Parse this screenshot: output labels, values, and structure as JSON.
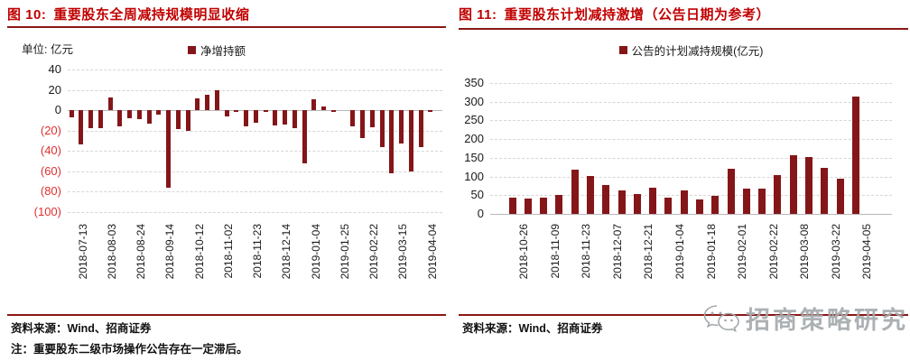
{
  "colors": {
    "bar": "#841619",
    "title_red": "#c00000",
    "rule_red": "#8b1717",
    "negative_tick_red": "#e03030",
    "gridline_gray": "#d6d6d6",
    "watermark_gray": "#a4a9ac"
  },
  "panels": {
    "left": {
      "source": "资料来源：Wind、招商证券",
      "note": "注：重要股东二级市场操作公告存在一定滞后。"
    },
    "right": {
      "source": "资料来源：Wind、招商证券"
    }
  },
  "watermark": {
    "icon": "wechat-logo-icon",
    "text": "招商策略研究"
  },
  "chart_data": [
    {
      "type": "bar",
      "figure_label": "图 10:",
      "title": "重要股东全周减持规模明显收缩",
      "unit_label": "单位: 亿元",
      "legend": "净增持额",
      "ylabel": "亿元",
      "ylim": [
        -100,
        40
      ],
      "grid": true,
      "ytick_values": [
        40,
        20,
        0,
        -20,
        -40,
        -60,
        -80,
        -100
      ],
      "ytick_labels": [
        "40",
        "20",
        "0",
        "(20)",
        "(40)",
        "(60)",
        "(80)",
        "(100)"
      ],
      "x_tick_labels": [
        "2018-07-13",
        "2018-08-03",
        "2018-08-24",
        "2018-09-14",
        "2018-10-12",
        "2018-11-02",
        "2018-11-23",
        "2018-12-14",
        "2019-01-04",
        "2019-01-25",
        "2019-02-22",
        "2019-03-15",
        "2019-04-04"
      ],
      "label_every_n_bars": 3,
      "values": [
        -7,
        -34,
        -18,
        -18,
        13,
        -16,
        -8,
        -9,
        -13,
        -4,
        -76,
        -19,
        -20,
        12,
        15,
        20,
        -6,
        -1,
        -16,
        -12,
        -1,
        -15,
        -14,
        -18,
        -52,
        11,
        4,
        -2,
        0,
        -16,
        -27,
        -17,
        -36,
        -62,
        -33,
        -60,
        -36,
        -2
      ]
    },
    {
      "type": "bar",
      "figure_label": "图 11:",
      "title": "重要股东计划减持激增（公告日期为参考）",
      "legend": "公告的计划减持规模(亿元)",
      "ylim": [
        0,
        350
      ],
      "grid": true,
      "ytick_values": [
        350,
        300,
        250,
        200,
        150,
        100,
        50,
        0
      ],
      "ytick_labels": [
        "350",
        "300",
        "250",
        "200",
        "150",
        "100",
        "50",
        "0"
      ],
      "x_tick_labels": [
        "2018-10-26",
        "2018-11-09",
        "2018-11-23",
        "2018-12-07",
        "2018-12-21",
        "2019-01-04",
        "2019-01-18",
        "2019-02-01",
        "2019-02-22",
        "2019-03-08",
        "2019-03-22",
        "2019-04-05"
      ],
      "label_every_n_bars": 2,
      "values": [
        44,
        40,
        44,
        52,
        118,
        102,
        78,
        62,
        53,
        71,
        43,
        62,
        39,
        49,
        120,
        67,
        67,
        104,
        157,
        153,
        124,
        94,
        315
      ]
    }
  ]
}
